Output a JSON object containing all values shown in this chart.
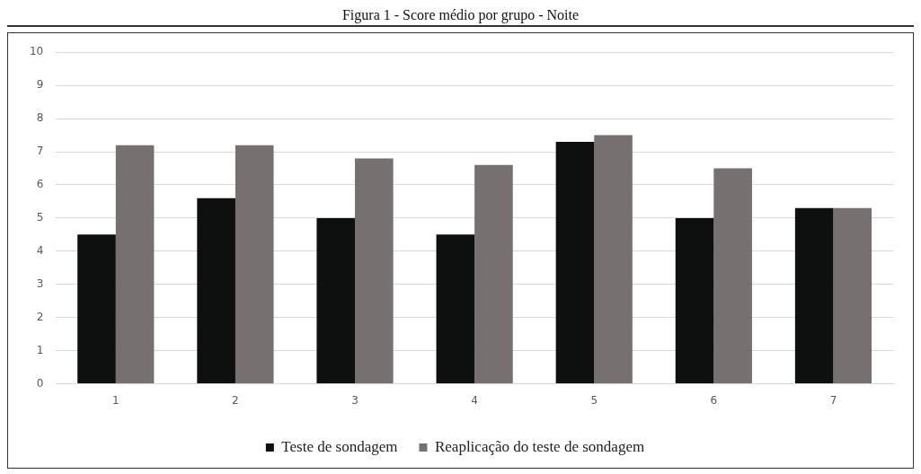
{
  "chart_data": {
    "type": "bar",
    "title": "Figura 1 - Score médio por grupo - Noite",
    "categories": [
      "1",
      "2",
      "3",
      "4",
      "5",
      "6",
      "7"
    ],
    "series": [
      {
        "name": "Teste de sondagem",
        "color": "#0e100f",
        "values": [
          4.5,
          5.6,
          5.0,
          4.5,
          7.3,
          5.0,
          5.3
        ]
      },
      {
        "name": "Reaplicação do teste de sondagem",
        "color": "#767170",
        "values": [
          7.2,
          7.2,
          6.8,
          6.6,
          7.5,
          6.5,
          5.3
        ]
      }
    ],
    "ylim": [
      0,
      10
    ],
    "yticks": [
      0,
      1,
      2,
      3,
      4,
      5,
      6,
      7,
      8,
      9,
      10
    ],
    "grid": "y",
    "legend": "bottom"
  }
}
